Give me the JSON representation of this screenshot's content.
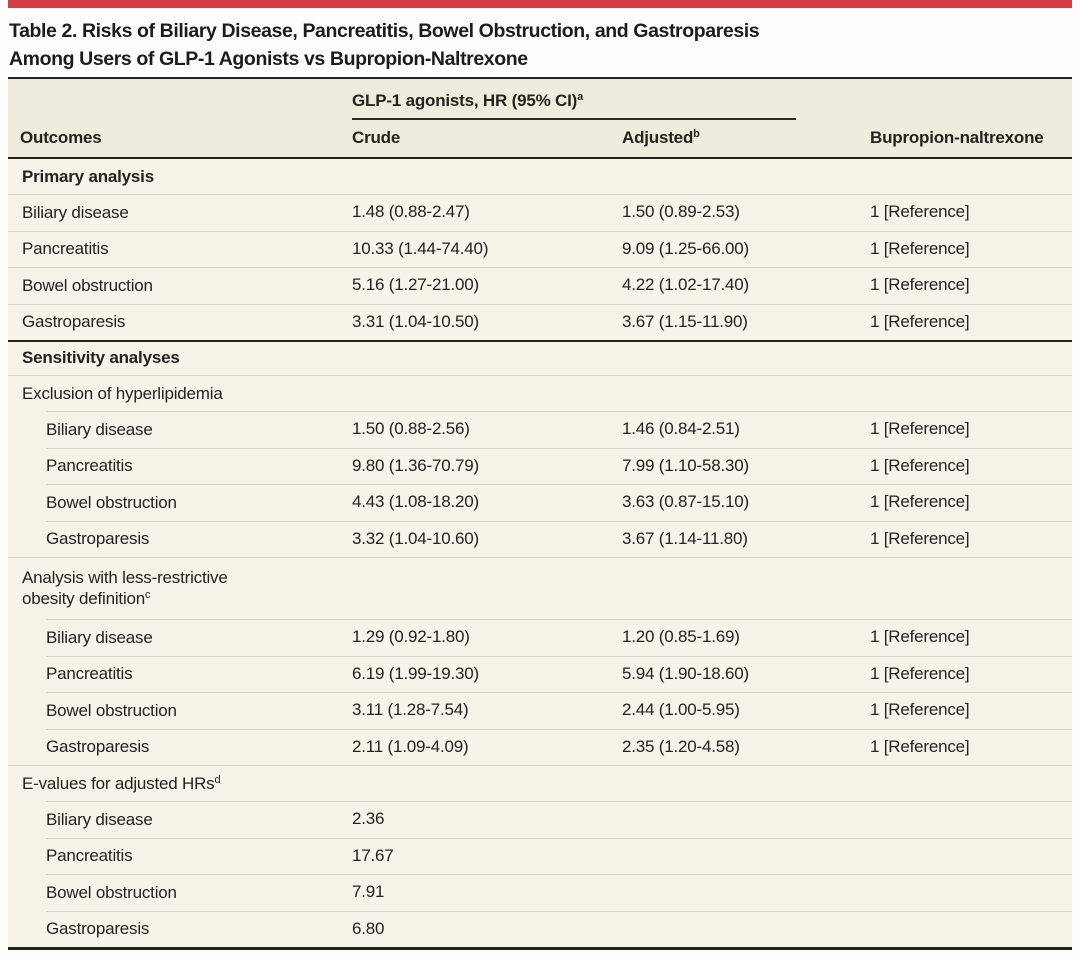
{
  "title": {
    "line1": "Table 2. Risks of Biliary Disease, Pancreatitis, Bowel Obstruction, and Gastroparesis",
    "line2": "Among Users of GLP-1 Agonists vs Bupropion-Naltrexone"
  },
  "table": {
    "group_header": {
      "label": "GLP-1 agonists, HR (95% CI)",
      "sup": "a"
    },
    "columns": [
      {
        "key": "outcome",
        "label": "Outcomes",
        "sup": ""
      },
      {
        "key": "crude",
        "label": "Crude",
        "sup": ""
      },
      {
        "key": "adjusted",
        "label": "Adjusted",
        "sup": "b"
      },
      {
        "key": "reference",
        "label": "Bupropion-naltrexone",
        "sup": ""
      }
    ],
    "rows": [
      {
        "type": "section",
        "label": "Primary analysis",
        "sep": "none"
      },
      {
        "type": "data",
        "indent": false,
        "outcome": "Biliary disease",
        "crude": "1.48 (0.88-2.47)",
        "adjusted": "1.50 (0.89-2.53)",
        "reference": "1 [Reference]"
      },
      {
        "type": "data",
        "indent": false,
        "outcome": "Pancreatitis",
        "crude": "10.33 (1.44-74.40)",
        "adjusted": "9.09 (1.25-66.00)",
        "reference": "1 [Reference]"
      },
      {
        "type": "data",
        "indent": false,
        "outcome": "Bowel obstruction",
        "crude": "5.16 (1.27-21.00)",
        "adjusted": "4.22 (1.02-17.40)",
        "reference": "1 [Reference]"
      },
      {
        "type": "data",
        "indent": false,
        "outcome": "Gastroparesis",
        "crude": "3.31 (1.04-10.50)",
        "adjusted": "3.67 (1.15-11.90)",
        "reference": "1 [Reference]"
      },
      {
        "type": "section",
        "label": "Sensitivity analyses",
        "sep": "heavy"
      },
      {
        "type": "subsection",
        "label": "Exclusion of hyperlipidemia",
        "sup": ""
      },
      {
        "type": "data",
        "indent": true,
        "outcome": "Biliary disease",
        "crude": "1.50 (0.88-2.56)",
        "adjusted": "1.46 (0.84-2.51)",
        "reference": "1 [Reference]"
      },
      {
        "type": "data",
        "indent": true,
        "outcome": "Pancreatitis",
        "crude": "9.80 (1.36-70.79)",
        "adjusted": "7.99 (1.10-58.30)",
        "reference": "1 [Reference]"
      },
      {
        "type": "data",
        "indent": true,
        "outcome": "Bowel obstruction",
        "crude": "4.43 (1.08-18.20)",
        "adjusted": "3.63 (0.87-15.10)",
        "reference": "1 [Reference]"
      },
      {
        "type": "data",
        "indent": true,
        "outcome": "Gastroparesis",
        "crude": "3.32 (1.04-10.60)",
        "adjusted": "3.67 (1.14-11.80)",
        "reference": "1 [Reference]"
      },
      {
        "type": "twoline",
        "label": "Analysis with less-restrictive obesity definition",
        "sup": "c"
      },
      {
        "type": "data",
        "indent": true,
        "outcome": "Biliary disease",
        "crude": "1.29 (0.92-1.80)",
        "adjusted": "1.20 (0.85-1.69)",
        "reference": "1 [Reference]"
      },
      {
        "type": "data",
        "indent": true,
        "outcome": "Pancreatitis",
        "crude": "6.19 (1.99-19.30)",
        "adjusted": "5.94 (1.90-18.60)",
        "reference": "1 [Reference]"
      },
      {
        "type": "data",
        "indent": true,
        "outcome": "Bowel obstruction",
        "crude": "3.11 (1.28-7.54)",
        "adjusted": "2.44 (1.00-5.95)",
        "reference": "1 [Reference]"
      },
      {
        "type": "data",
        "indent": true,
        "outcome": "Gastroparesis",
        "crude": "2.11 (1.09-4.09)",
        "adjusted": "2.35 (1.20-4.58)",
        "reference": "1 [Reference]"
      },
      {
        "type": "subsection",
        "label": "E-values for adjusted HRs",
        "sup": "d"
      },
      {
        "type": "data",
        "indent": true,
        "outcome": "Biliary disease",
        "crude": "2.36",
        "adjusted": "",
        "reference": ""
      },
      {
        "type": "data",
        "indent": true,
        "outcome": "Pancreatitis",
        "crude": "17.67",
        "adjusted": "",
        "reference": ""
      },
      {
        "type": "data",
        "indent": true,
        "outcome": "Bowel obstruction",
        "crude": "7.91",
        "adjusted": "",
        "reference": ""
      },
      {
        "type": "data",
        "indent": true,
        "outcome": "Gastroparesis",
        "crude": "6.80",
        "adjusted": "",
        "reference": ""
      }
    ]
  },
  "colors": {
    "accent_red": "#cf3e43",
    "table_background": "#f6f3e8",
    "header_background": "#f0ecdd",
    "rule_light": "#d9d5c5",
    "rule_heavy": "#23231f",
    "text": "#23231f"
  }
}
